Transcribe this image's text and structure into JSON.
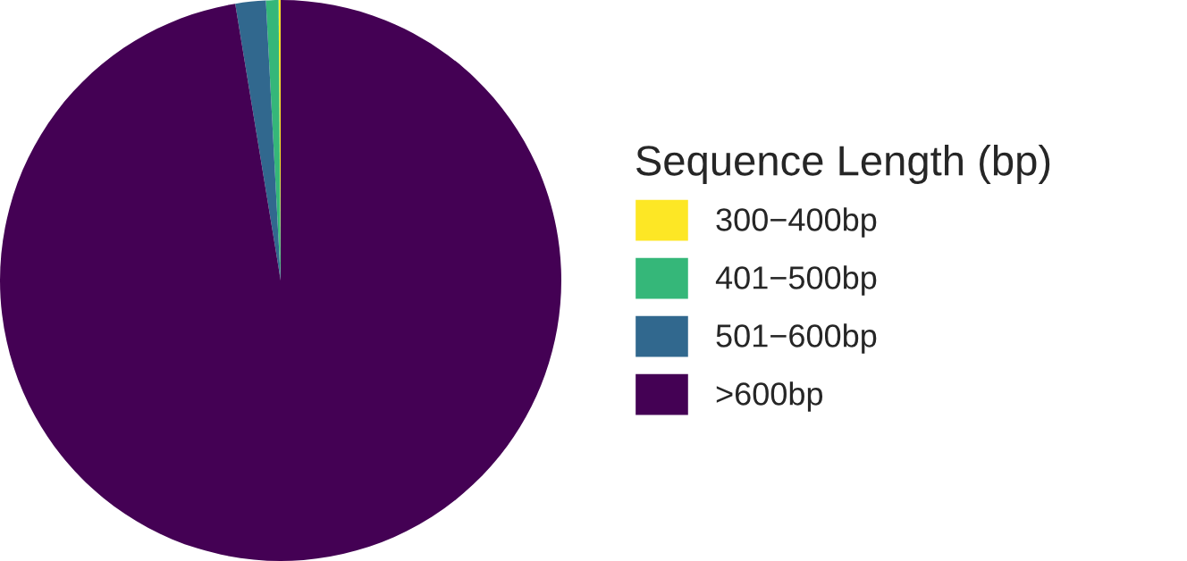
{
  "chart_data": {
    "type": "pie",
    "legend_title": "Sequence Length (bp)",
    "categories": [
      "300−400bp",
      "401−500bp",
      "501−600bp",
      ">600bp"
    ],
    "values": [
      0.12,
      0.72,
      1.75,
      97.41
    ],
    "colors": [
      "#fde725",
      "#35b779",
      "#31688e",
      "#440154"
    ],
    "legend": "right"
  }
}
